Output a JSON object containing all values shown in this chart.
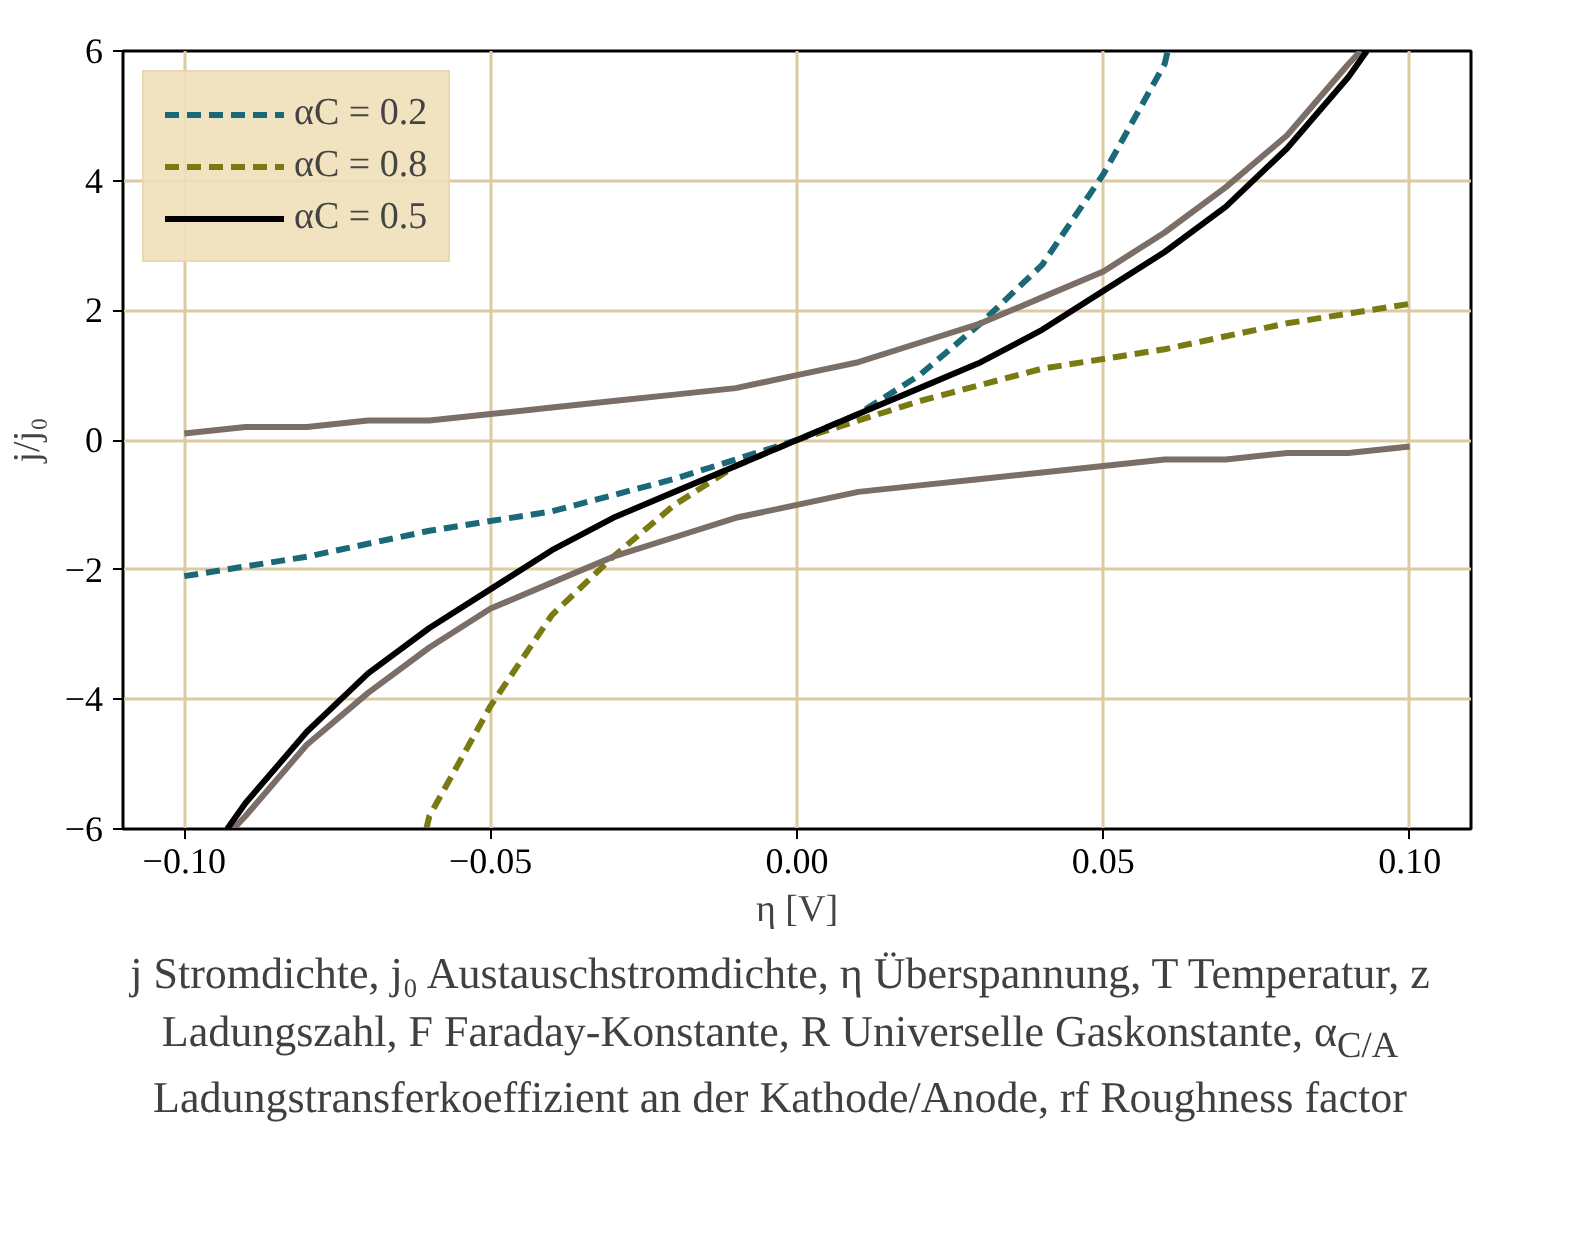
{
  "chart_data": {
    "type": "line",
    "xlabel": "η [V]",
    "ylabel": "j/j₀",
    "xlim": [
      -0.11,
      0.11
    ],
    "ylim": [
      -6,
      6
    ],
    "xticks": [
      {
        "value": -0.1,
        "label": "−0.10"
      },
      {
        "value": -0.05,
        "label": "−0.05"
      },
      {
        "value": 0,
        "label": "0.00"
      },
      {
        "value": 0.05,
        "label": "0.05"
      },
      {
        "value": 0.1,
        "label": "0.10"
      }
    ],
    "yticks": [
      {
        "value": -6,
        "label": "−6"
      },
      {
        "value": -4,
        "label": "−4"
      },
      {
        "value": -2,
        "label": "−2"
      },
      0,
      2,
      4,
      6
    ],
    "grid": true,
    "legend": "top left",
    "series": [
      {
        "name": "αC = 0.2",
        "color": "#1b6878",
        "line_style": "dashed",
        "x": [
          -0.1,
          -0.08,
          -0.06,
          -0.04,
          -0.02,
          0,
          0.01,
          0.02,
          0.03,
          0.04,
          0.05,
          0.06,
          0.0605
        ],
        "values": [
          -2.1,
          -1.8,
          -1.4,
          -1.1,
          -0.6,
          0,
          0.4,
          1.0,
          1.8,
          2.7,
          4.1,
          5.8,
          6.0
        ]
      },
      {
        "name": "αC = 0.8",
        "color": "#7a7a12",
        "line_style": "dashed",
        "x": [
          -0.0605,
          -0.06,
          -0.05,
          -0.04,
          -0.03,
          -0.02,
          -0.01,
          0,
          0.02,
          0.04,
          0.06,
          0.08,
          0.1
        ],
        "values": [
          -6.0,
          -5.8,
          -4.1,
          -2.7,
          -1.8,
          -1.0,
          -0.4,
          0,
          0.6,
          1.1,
          1.4,
          1.8,
          2.1
        ]
      },
      {
        "color": "#7a6e66",
        "line_style": "solid",
        "x": [
          -0.1,
          -0.09,
          -0.08,
          -0.07,
          -0.06,
          -0.05,
          -0.04,
          -0.03,
          -0.02,
          -0.01,
          0,
          0.01,
          0.02,
          0.03,
          0.04,
          0.05,
          0.06,
          0.07,
          0.08,
          0.09,
          0.092
        ],
        "values": [
          0.1,
          0.2,
          0.2,
          0.3,
          0.3,
          0.4,
          0.5,
          0.6,
          0.7,
          0.8,
          1.0,
          1.2,
          1.5,
          1.8,
          2.2,
          2.6,
          3.2,
          3.9,
          4.7,
          5.8,
          6.0
        ]
      },
      {
        "color": "#7a6e66",
        "line_style": "solid",
        "x": [
          -0.092,
          -0.09,
          -0.08,
          -0.07,
          -0.06,
          -0.05,
          -0.04,
          -0.03,
          -0.02,
          -0.01,
          0,
          0.01,
          0.02,
          0.03,
          0.04,
          0.05,
          0.06,
          0.07,
          0.08,
          0.09,
          0.1
        ],
        "values": [
          -6.0,
          -5.8,
          -4.7,
          -3.9,
          -3.2,
          -2.6,
          -2.2,
          -1.8,
          -1.5,
          -1.2,
          -1.0,
          -0.8,
          -0.7,
          -0.6,
          -0.5,
          -0.4,
          -0.3,
          -0.3,
          -0.2,
          -0.2,
          -0.1
        ]
      },
      {
        "name": "αC = 0.5",
        "color": "#000000",
        "line_style": "solid",
        "x": [
          -0.093,
          -0.09,
          -0.08,
          -0.07,
          -0.06,
          -0.05,
          -0.04,
          -0.03,
          -0.02,
          -0.01,
          0,
          0.01,
          0.02,
          0.03,
          0.04,
          0.05,
          0.06,
          0.07,
          0.08,
          0.09,
          0.093
        ],
        "values": [
          -6.0,
          -5.6,
          -4.5,
          -3.6,
          -2.9,
          -2.3,
          -1.7,
          -1.2,
          -0.8,
          -0.4,
          0,
          0.4,
          0.8,
          1.2,
          1.7,
          2.3,
          2.9,
          3.6,
          4.5,
          5.6,
          6.0
        ]
      }
    ],
    "annotations": [
      "j Stromdichte, j₀ Austauschstromdichte, η Überspannung, T Temperatur, z Ladungszahl, F Faraday-Konstante, R Universelle Gaskonstante, α$_{C/A}$ Ladungstransferkoeffizient an der Kathode/Anode, rf Roughness factor"
    ]
  }
}
